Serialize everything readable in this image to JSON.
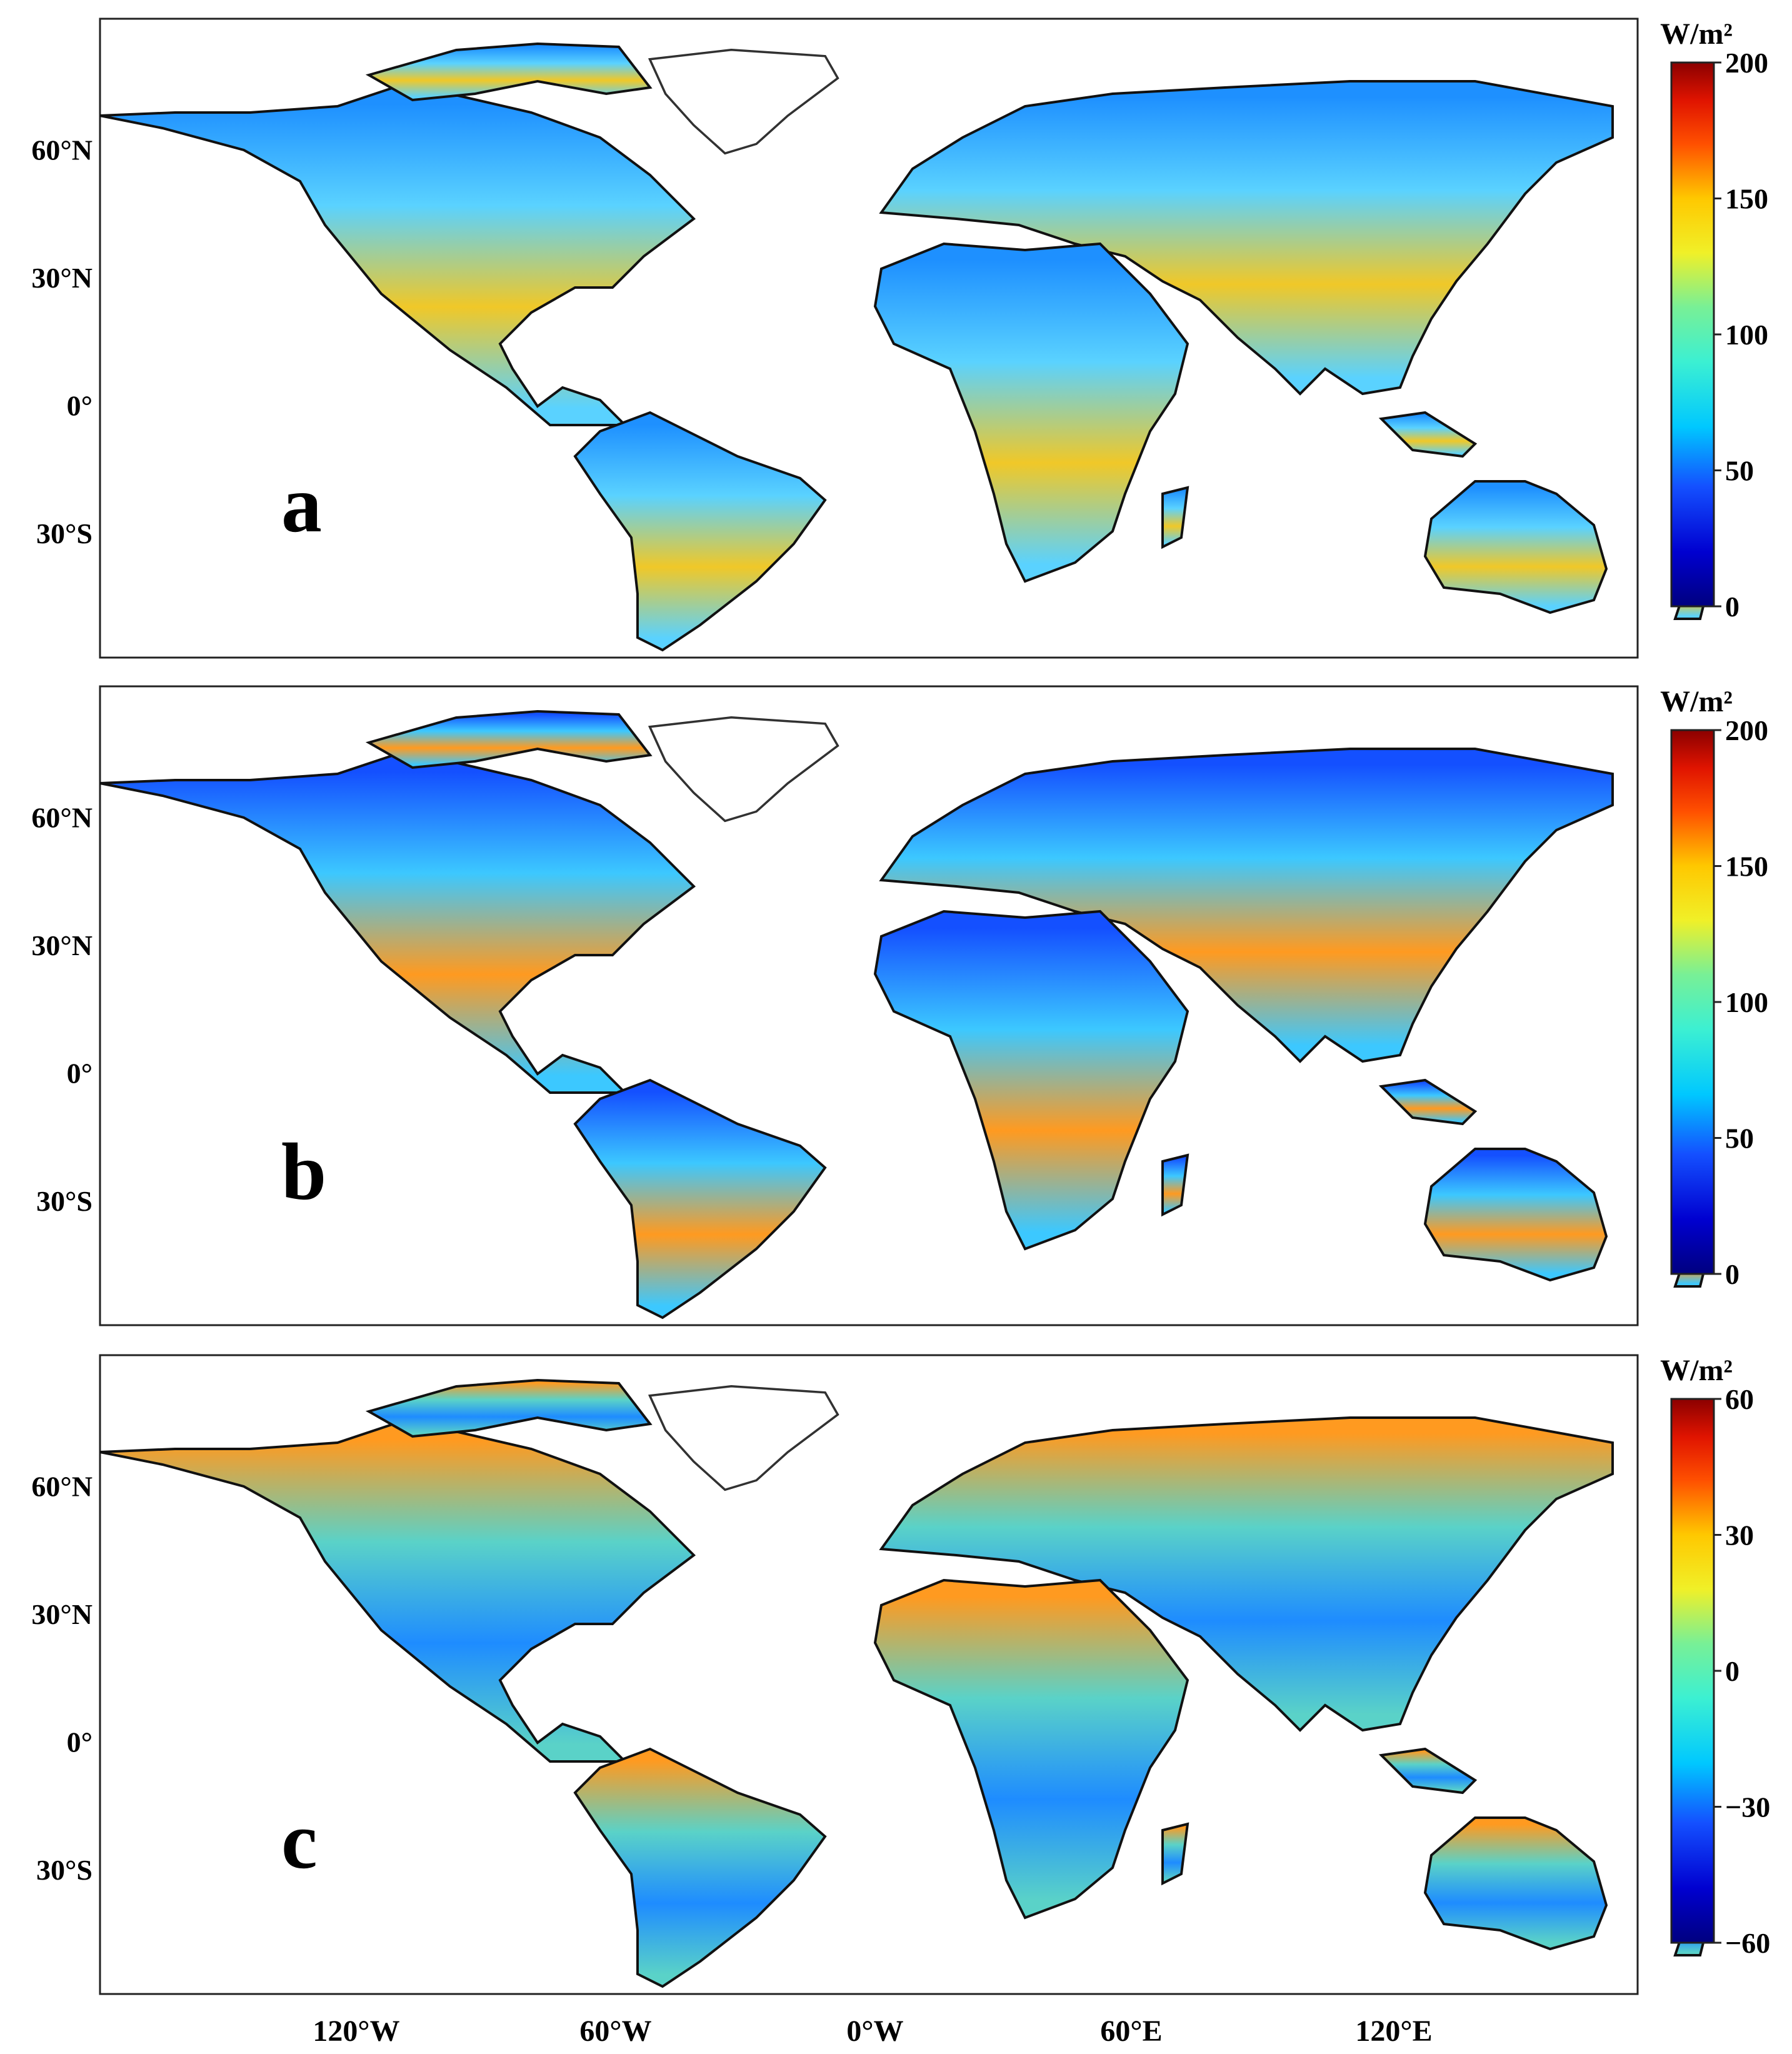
{
  "panels": [
    {
      "letter": "a",
      "unit": "W/m²",
      "scale": {
        "min": 0,
        "max": 200,
        "ticks": [
          "200",
          "150",
          "100",
          "50",
          "0"
        ]
      },
      "lat_labels": [
        "60°N",
        "30°N",
        "0°",
        "30°S"
      ]
    },
    {
      "letter": "b",
      "unit": "W/m²",
      "scale": {
        "min": 0,
        "max": 200,
        "ticks": [
          "200",
          "150",
          "100",
          "50",
          "0"
        ]
      },
      "lat_labels": [
        "60°N",
        "30°N",
        "0°",
        "30°S"
      ]
    },
    {
      "letter": "c",
      "unit": "W/m²",
      "scale": {
        "min": -60,
        "max": 60,
        "ticks": [
          "60",
          "30",
          "0",
          "−30",
          "−60"
        ]
      },
      "lat_labels": [
        "60°N",
        "30°N",
        "0°",
        "30°S"
      ]
    }
  ],
  "lon_labels": [
    "120°W",
    "60°W",
    "0°W",
    "60°E",
    "120°E"
  ],
  "colors": {
    "scale": [
      "#00007f",
      "#0000d0",
      "#1450ff",
      "#1e90ff",
      "#00c8ff",
      "#3cf0d2",
      "#78f096",
      "#b4f05a",
      "#f0f028",
      "#ffc800",
      "#ff8c00",
      "#ff5000",
      "#e01400",
      "#8b0000"
    ],
    "outline": "#111111",
    "ice": "#ffffff"
  }
}
